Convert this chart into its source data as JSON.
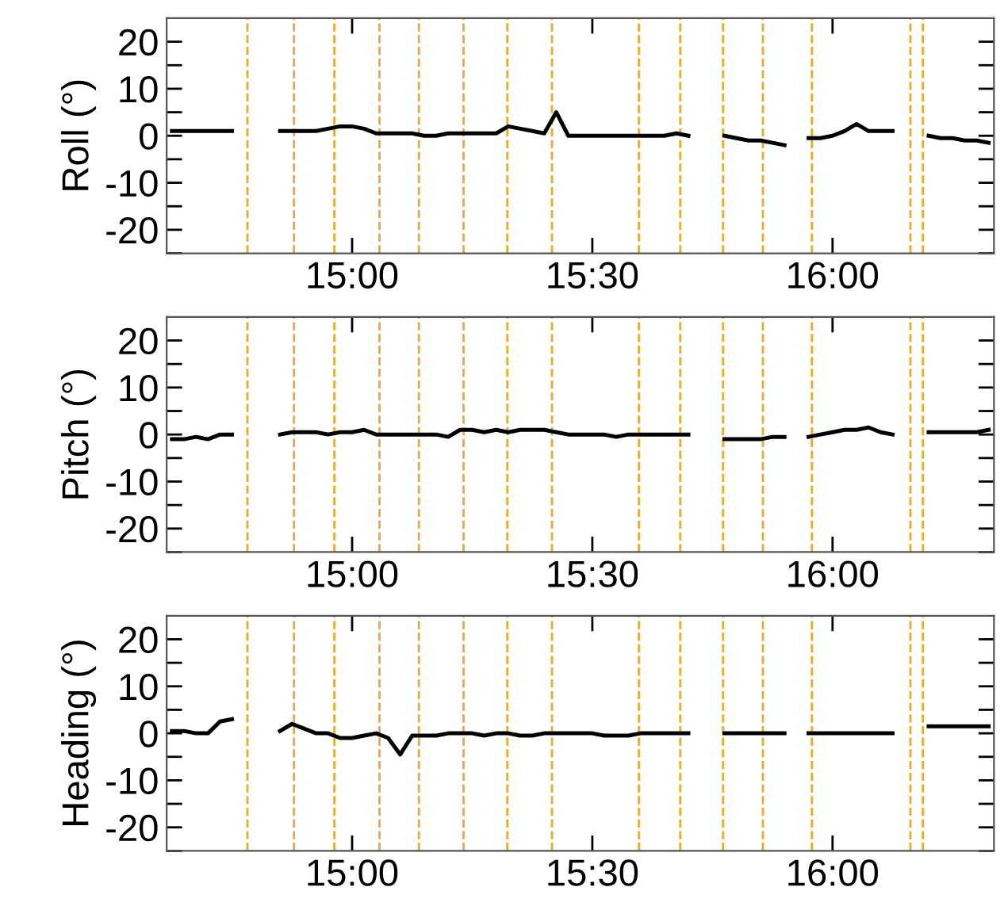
{
  "chart_data": [
    {
      "type": "line",
      "ylabel": "Roll (°)",
      "xlim": [
        14.614,
        16.336
      ],
      "xticks": [
        {
          "value": 15,
          "label": "15:00"
        },
        {
          "value": 15.5,
          "label": "15:30"
        },
        {
          "value": 16,
          "label": "16:00"
        }
      ],
      "ylim": [
        -25,
        25
      ],
      "yticks": [
        {
          "value": -25,
          "label": null
        },
        -20,
        {
          "value": -15,
          "label": null
        },
        -10,
        {
          "value": -5,
          "label": null
        },
        0,
        {
          "value": 5,
          "label": null
        },
        10,
        {
          "value": 15,
          "label": null
        },
        20
      ],
      "grid": false,
      "legend": false,
      "marker": "none",
      "line_style": "solid",
      "x": [
        14.625,
        14.65,
        14.675,
        14.7,
        14.725,
        14.75,
        14.775,
        14.8,
        14.825,
        14.85,
        14.875,
        14.9,
        14.925,
        14.95,
        14.975,
        15.0,
        15.025,
        15.05,
        15.075,
        15.1,
        15.125,
        15.15,
        15.175,
        15.2,
        15.225,
        15.25,
        15.275,
        15.3,
        15.325,
        15.35,
        15.375,
        15.4,
        15.425,
        15.45,
        15.475,
        15.5,
        15.525,
        15.55,
        15.575,
        15.6,
        15.625,
        15.65,
        15.675,
        15.7,
        15.725,
        15.75,
        15.775,
        15.8,
        15.825,
        15.85,
        15.875,
        15.9,
        15.925,
        15.95,
        15.975,
        16.0,
        16.025,
        16.05,
        16.075,
        16.1,
        16.125,
        16.15,
        16.175,
        16.2,
        16.225,
        16.25,
        16.275,
        16.3,
        16.325
      ],
      "series": [
        {
          "color": "#000000",
          "values": [
            1,
            1,
            1,
            1,
            1,
            1,
            null,
            null,
            null,
            1,
            1,
            1,
            1,
            1.5,
            2,
            2,
            1.5,
            0.5,
            0.5,
            0.5,
            0.5,
            0,
            0,
            0.5,
            0.5,
            0.5,
            0.5,
            0.5,
            2,
            1.5,
            1,
            0.5,
            5,
            0,
            0,
            0,
            0,
            0,
            0,
            0,
            0,
            0,
            0.5,
            0,
            null,
            null,
            0,
            -0.5,
            -1,
            -1,
            -1.5,
            -2,
            null,
            -0.5,
            -0.5,
            0,
            1,
            2.5,
            1,
            1,
            1,
            null,
            null,
            0,
            -0.5,
            -0.5,
            -1,
            -1,
            -1.5
          ]
        }
      ],
      "ref_lines": [
        {
          "axis": "x",
          "value": 14.782,
          "color": "#f0a830",
          "line_style": "dashed"
        },
        {
          "axis": "x",
          "value": 14.879,
          "color": "#f0a830",
          "line_style": "dashed"
        },
        {
          "axis": "x",
          "value": 14.963,
          "color": "#f0a830",
          "line_style": "dashed"
        },
        {
          "axis": "x",
          "value": 15.057,
          "color": "#f0a830",
          "line_style": "dashed"
        },
        {
          "axis": "x",
          "value": 15.139,
          "color": "#f0a830",
          "line_style": "dashed"
        },
        {
          "axis": "x",
          "value": 15.232,
          "color": "#f0a830",
          "line_style": "dashed"
        },
        {
          "axis": "x",
          "value": 15.323,
          "color": "#f0a830",
          "line_style": "dashed"
        },
        {
          "axis": "x",
          "value": 15.416,
          "color": "#f0a830",
          "line_style": "dashed"
        },
        {
          "axis": "x",
          "value": 15.597,
          "color": "#f0a830",
          "line_style": "dashed"
        },
        {
          "axis": "x",
          "value": 15.683,
          "color": "#f0a830",
          "line_style": "dashed"
        },
        {
          "axis": "x",
          "value": 15.772,
          "color": "#f0a830",
          "line_style": "dashed"
        },
        {
          "axis": "x",
          "value": 15.855,
          "color": "#f0a830",
          "line_style": "dashed"
        },
        {
          "axis": "x",
          "value": 15.957,
          "color": "#f0a830",
          "line_style": "dashed"
        },
        {
          "axis": "x",
          "value": 16.162,
          "color": "#f0a830",
          "line_style": "dashed"
        },
        {
          "axis": "x",
          "value": 16.188,
          "color": "#f0a830",
          "line_style": "dashed"
        }
      ]
    },
    {
      "type": "line",
      "ylabel": "Pitch (°)",
      "xlim": [
        14.614,
        16.336
      ],
      "xticks": [
        {
          "value": 15,
          "label": "15:00"
        },
        {
          "value": 15.5,
          "label": "15:30"
        },
        {
          "value": 16,
          "label": "16:00"
        }
      ],
      "ylim": [
        -25,
        25
      ],
      "yticks": [
        {
          "value": -25,
          "label": null
        },
        -20,
        {
          "value": -15,
          "label": null
        },
        -10,
        {
          "value": -5,
          "label": null
        },
        0,
        {
          "value": 5,
          "label": null
        },
        10,
        {
          "value": 15,
          "label": null
        },
        20
      ],
      "grid": false,
      "legend": false,
      "marker": "none",
      "line_style": "solid",
      "x": [
        14.625,
        14.65,
        14.675,
        14.7,
        14.725,
        14.75,
        14.775,
        14.8,
        14.825,
        14.85,
        14.875,
        14.9,
        14.925,
        14.95,
        14.975,
        15.0,
        15.025,
        15.05,
        15.075,
        15.1,
        15.125,
        15.15,
        15.175,
        15.2,
        15.225,
        15.25,
        15.275,
        15.3,
        15.325,
        15.35,
        15.375,
        15.4,
        15.425,
        15.45,
        15.475,
        15.5,
        15.525,
        15.55,
        15.575,
        15.6,
        15.625,
        15.65,
        15.675,
        15.7,
        15.725,
        15.75,
        15.775,
        15.8,
        15.825,
        15.85,
        15.875,
        15.9,
        15.925,
        15.95,
        15.975,
        16.0,
        16.025,
        16.05,
        16.075,
        16.1,
        16.125,
        16.15,
        16.175,
        16.2,
        16.225,
        16.25,
        16.275,
        16.3,
        16.325
      ],
      "series": [
        {
          "color": "#000000",
          "values": [
            -1,
            -1,
            -0.5,
            -1,
            0,
            0,
            null,
            null,
            null,
            0,
            0.5,
            0.5,
            0.5,
            0,
            0.5,
            0.5,
            1,
            0,
            0,
            0,
            0,
            0,
            0,
            -0.5,
            1,
            1,
            0.5,
            1,
            0.5,
            1,
            1,
            1,
            0.5,
            0,
            0,
            0,
            0,
            -0.5,
            0,
            0,
            0,
            0,
            0,
            0,
            null,
            null,
            -1,
            -1,
            -1,
            -1,
            -0.5,
            -0.5,
            null,
            -0.5,
            0,
            0.5,
            1,
            1,
            1.5,
            0.5,
            0,
            null,
            null,
            0.5,
            0.5,
            0.5,
            0.5,
            0.5,
            1
          ]
        }
      ],
      "ref_lines": [
        {
          "axis": "x",
          "value": 14.782,
          "color": "#f0a830",
          "line_style": "dashed"
        },
        {
          "axis": "x",
          "value": 14.879,
          "color": "#f0a830",
          "line_style": "dashed"
        },
        {
          "axis": "x",
          "value": 14.963,
          "color": "#f0a830",
          "line_style": "dashed"
        },
        {
          "axis": "x",
          "value": 15.057,
          "color": "#f0a830",
          "line_style": "dashed"
        },
        {
          "axis": "x",
          "value": 15.139,
          "color": "#f0a830",
          "line_style": "dashed"
        },
        {
          "axis": "x",
          "value": 15.232,
          "color": "#f0a830",
          "line_style": "dashed"
        },
        {
          "axis": "x",
          "value": 15.323,
          "color": "#f0a830",
          "line_style": "dashed"
        },
        {
          "axis": "x",
          "value": 15.416,
          "color": "#f0a830",
          "line_style": "dashed"
        },
        {
          "axis": "x",
          "value": 15.597,
          "color": "#f0a830",
          "line_style": "dashed"
        },
        {
          "axis": "x",
          "value": 15.683,
          "color": "#f0a830",
          "line_style": "dashed"
        },
        {
          "axis": "x",
          "value": 15.772,
          "color": "#f0a830",
          "line_style": "dashed"
        },
        {
          "axis": "x",
          "value": 15.855,
          "color": "#f0a830",
          "line_style": "dashed"
        },
        {
          "axis": "x",
          "value": 15.957,
          "color": "#f0a830",
          "line_style": "dashed"
        },
        {
          "axis": "x",
          "value": 16.162,
          "color": "#f0a830",
          "line_style": "dashed"
        },
        {
          "axis": "x",
          "value": 16.188,
          "color": "#f0a830",
          "line_style": "dashed"
        }
      ]
    },
    {
      "type": "line",
      "ylabel": "Heading (°)",
      "xlim": [
        14.614,
        16.336
      ],
      "xticks": [
        {
          "value": 15,
          "label": "15:00"
        },
        {
          "value": 15.5,
          "label": "15:30"
        },
        {
          "value": 16,
          "label": "16:00"
        }
      ],
      "ylim": [
        -25,
        25
      ],
      "yticks": [
        {
          "value": -25,
          "label": null
        },
        -20,
        {
          "value": -15,
          "label": null
        },
        -10,
        {
          "value": -5,
          "label": null
        },
        0,
        {
          "value": 5,
          "label": null
        },
        10,
        {
          "value": 15,
          "label": null
        },
        20
      ],
      "grid": false,
      "legend": false,
      "marker": "none",
      "line_style": "solid",
      "x": [
        14.625,
        14.65,
        14.675,
        14.7,
        14.725,
        14.75,
        14.775,
        14.8,
        14.825,
        14.85,
        14.875,
        14.9,
        14.925,
        14.95,
        14.975,
        15.0,
        15.025,
        15.05,
        15.075,
        15.1,
        15.125,
        15.15,
        15.175,
        15.2,
        15.225,
        15.25,
        15.275,
        15.3,
        15.325,
        15.35,
        15.375,
        15.4,
        15.425,
        15.45,
        15.475,
        15.5,
        15.525,
        15.55,
        15.575,
        15.6,
        15.625,
        15.65,
        15.675,
        15.7,
        15.725,
        15.75,
        15.775,
        15.8,
        15.825,
        15.85,
        15.875,
        15.9,
        15.925,
        15.95,
        15.975,
        16.0,
        16.025,
        16.05,
        16.075,
        16.1,
        16.125,
        16.15,
        16.175,
        16.2,
        16.225,
        16.25,
        16.275,
        16.3,
        16.325
      ],
      "series": [
        {
          "color": "#000000",
          "values": [
            0.5,
            0.5,
            0,
            0,
            2.5,
            3,
            null,
            null,
            null,
            0.5,
            2,
            1,
            0,
            0,
            -1,
            -1,
            -0.5,
            0,
            -1,
            -4.5,
            -0.5,
            -0.5,
            -0.5,
            0,
            0,
            0,
            -0.5,
            0,
            0,
            -0.5,
            -0.5,
            0,
            0,
            0,
            0,
            0,
            -0.5,
            -0.5,
            -0.5,
            0,
            0,
            0,
            0,
            0,
            null,
            null,
            0,
            0,
            0,
            0,
            0,
            0,
            null,
            0,
            0,
            0,
            0,
            0,
            0,
            0,
            0,
            null,
            null,
            1.5,
            1.5,
            1.5,
            1.5,
            1.5,
            1.5
          ]
        }
      ],
      "ref_lines": [
        {
          "axis": "x",
          "value": 14.782,
          "color": "#f0a830",
          "line_style": "dashed"
        },
        {
          "axis": "x",
          "value": 14.879,
          "color": "#f0a830",
          "line_style": "dashed"
        },
        {
          "axis": "x",
          "value": 14.963,
          "color": "#f0a830",
          "line_style": "dashed"
        },
        {
          "axis": "x",
          "value": 15.057,
          "color": "#f0a830",
          "line_style": "dashed"
        },
        {
          "axis": "x",
          "value": 15.139,
          "color": "#f0a830",
          "line_style": "dashed"
        },
        {
          "axis": "x",
          "value": 15.232,
          "color": "#f0a830",
          "line_style": "dashed"
        },
        {
          "axis": "x",
          "value": 15.323,
          "color": "#f0a830",
          "line_style": "dashed"
        },
        {
          "axis": "x",
          "value": 15.416,
          "color": "#f0a830",
          "line_style": "dashed"
        },
        {
          "axis": "x",
          "value": 15.597,
          "color": "#f0a830",
          "line_style": "dashed"
        },
        {
          "axis": "x",
          "value": 15.683,
          "color": "#f0a830",
          "line_style": "dashed"
        },
        {
          "axis": "x",
          "value": 15.772,
          "color": "#f0a830",
          "line_style": "dashed"
        },
        {
          "axis": "x",
          "value": 15.855,
          "color": "#f0a830",
          "line_style": "dashed"
        },
        {
          "axis": "x",
          "value": 15.957,
          "color": "#f0a830",
          "line_style": "dashed"
        },
        {
          "axis": "x",
          "value": 16.162,
          "color": "#f0a830",
          "line_style": "dashed"
        },
        {
          "axis": "x",
          "value": 16.188,
          "color": "#f0a830",
          "line_style": "dashed"
        }
      ]
    }
  ]
}
